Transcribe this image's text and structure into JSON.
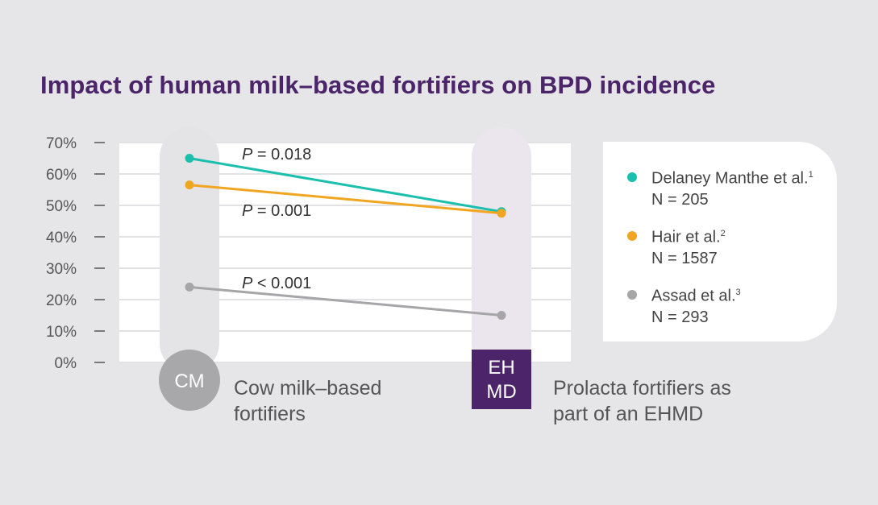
{
  "colors": {
    "background": "#e6e6e8",
    "title": "#4b2469",
    "cm_badge": "#a8a8aa",
    "ehmd_badge": "#4b2469",
    "cm_column": "#e4e4e6",
    "ehmd_column": "#ebe6ee",
    "grid": "#e2e2e4",
    "plot_background": "#ffffff"
  },
  "groups": {
    "cm": {
      "badge": "CM",
      "label_line1": "Cow milk–based",
      "label_line2": "fortifiers"
    },
    "ehmd": {
      "badge_line1": "EH",
      "badge_line2": "MD",
      "label_line1": "Prolacta fortifiers as",
      "label_line2": "part of an EHMD"
    }
  },
  "legend": [
    {
      "series": "Delaney Manthe et al.",
      "sup": "1",
      "n": "N = 205",
      "color": "#1bbfad"
    },
    {
      "series": "Hair et al.",
      "sup": "2",
      "n": "N = 1587",
      "color": "#f0a621"
    },
    {
      "series": "Assad et al.",
      "sup": "3",
      "n": "N = 293",
      "color": "#a6a6a8"
    }
  ],
  "chart_data": {
    "type": "line",
    "title": "Impact of human milk–based fortifiers on BPD incidence",
    "categories": [
      "CM",
      "EHMD"
    ],
    "yticks": [
      "70%",
      "60%",
      "50%",
      "40%",
      "30%",
      "20%",
      "10%",
      "0%"
    ],
    "ylim": [
      0,
      70
    ],
    "grid": true,
    "legend_position": "right",
    "series": [
      {
        "name": "Delaney Manthe et al.",
        "values": [
          65,
          48
        ],
        "color": "#1bbfad"
      },
      {
        "name": "Hair et al.",
        "values": [
          56.5,
          47.5
        ],
        "color": "#f0a621"
      },
      {
        "name": "Assad et al.",
        "values": [
          24,
          15
        ],
        "color": "#a6a6a8"
      }
    ],
    "annotations": [
      {
        "italic": "P",
        "text": " = 0.018"
      },
      {
        "italic": "P",
        "text": " = 0.001"
      },
      {
        "italic": "P",
        "text": " < 0.001"
      }
    ]
  }
}
